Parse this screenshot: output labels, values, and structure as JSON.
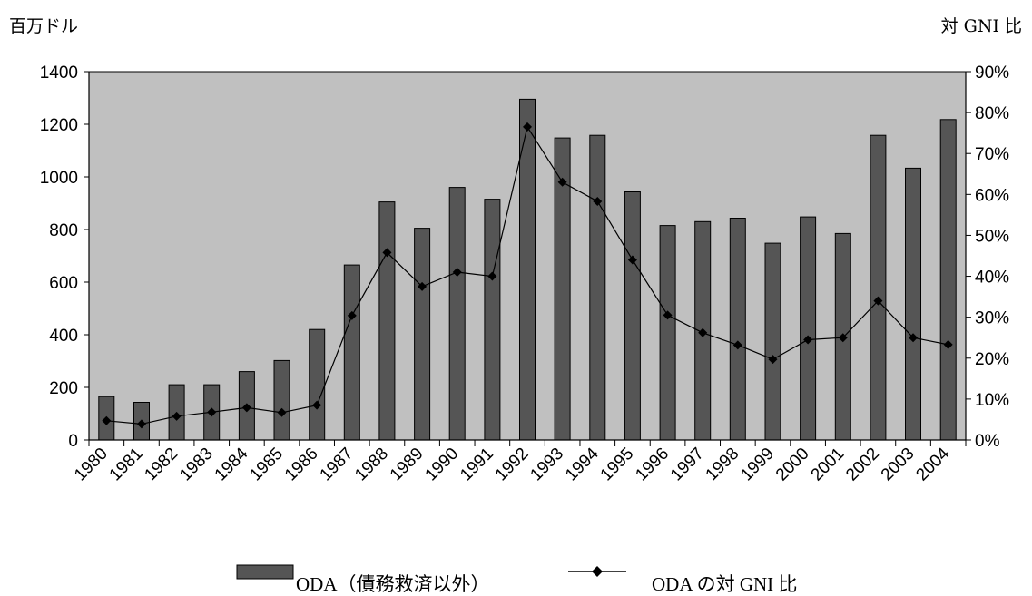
{
  "chart_data": {
    "type": "bar",
    "title": "",
    "left_axis_unit": "百万ドル",
    "right_axis_unit": "対 GNI 比",
    "categories": [
      "1980",
      "1981",
      "1982",
      "1983",
      "1984",
      "1985",
      "1986",
      "1987",
      "1988",
      "1989",
      "1990",
      "1991",
      "1992",
      "1993",
      "1994",
      "1995",
      "1996",
      "1997",
      "1998",
      "1999",
      "2000",
      "2001",
      "2002",
      "2003",
      "2004"
    ],
    "series": [
      {
        "name": "ODA（債務救済以外）",
        "type": "bar",
        "axis": "left",
        "color": "#555555",
        "values": [
          165,
          143,
          210,
          210,
          260,
          302,
          420,
          665,
          905,
          805,
          960,
          915,
          1295,
          1148,
          1158,
          943,
          815,
          830,
          843,
          748,
          848,
          785,
          1158,
          1033,
          1218
        ]
      },
      {
        "name": "ODA の対 GNI 比",
        "type": "line",
        "axis": "right",
        "color": "#000000",
        "values": [
          0.047,
          0.039,
          0.058,
          0.068,
          0.079,
          0.067,
          0.085,
          0.304,
          0.458,
          0.375,
          0.41,
          0.4,
          0.765,
          0.63,
          0.583,
          0.44,
          0.305,
          0.262,
          0.232,
          0.197,
          0.245,
          0.25,
          0.34,
          0.25,
          0.233
        ]
      }
    ],
    "ylim_left": [
      0,
      1400
    ],
    "ylim_right": [
      0,
      0.9
    ],
    "left_ticks": [
      "0",
      "200",
      "400",
      "600",
      "800",
      "1000",
      "1200",
      "1400"
    ],
    "right_ticks": [
      "0%",
      "10%",
      "20%",
      "30%",
      "40%",
      "50%",
      "60%",
      "70%",
      "80%",
      "90%"
    ],
    "plot_background": "#c0c0c0",
    "grid": false,
    "legend_position": "bottom"
  }
}
